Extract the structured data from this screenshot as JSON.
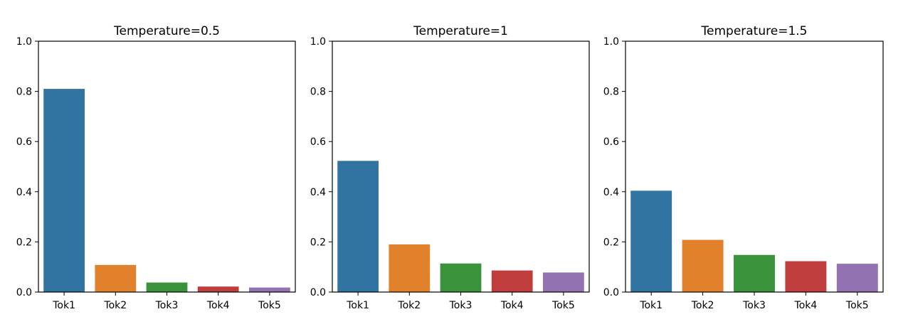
{
  "chart_data": [
    {
      "type": "bar",
      "title": "Temperature=0.5",
      "categories": [
        "Tok1",
        "Tok2",
        "Tok3",
        "Tok4",
        "Tok5"
      ],
      "values": [
        0.81,
        0.108,
        0.038,
        0.022,
        0.018
      ],
      "colors": [
        "#3274a1",
        "#e1812c",
        "#3a923a",
        "#c03d3e",
        "#9372b2"
      ],
      "ylim": [
        0,
        1.0
      ],
      "yticks": [
        "0.0",
        "0.2",
        "0.4",
        "0.6",
        "0.8",
        "1.0"
      ],
      "xlabel": "",
      "ylabel": "",
      "grid": false
    },
    {
      "type": "bar",
      "title": "Temperature=1",
      "categories": [
        "Tok1",
        "Tok2",
        "Tok3",
        "Tok4",
        "Tok5"
      ],
      "values": [
        0.523,
        0.19,
        0.114,
        0.086,
        0.078
      ],
      "colors": [
        "#3274a1",
        "#e1812c",
        "#3a923a",
        "#c03d3e",
        "#9372b2"
      ],
      "ylim": [
        0,
        1.0
      ],
      "yticks": [
        "0.0",
        "0.2",
        "0.4",
        "0.6",
        "0.8",
        "1.0"
      ],
      "xlabel": "",
      "ylabel": "",
      "grid": false
    },
    {
      "type": "bar",
      "title": "Temperature=1.5",
      "categories": [
        "Tok1",
        "Tok2",
        "Tok3",
        "Tok4",
        "Tok5"
      ],
      "values": [
        0.404,
        0.208,
        0.148,
        0.123,
        0.113
      ],
      "colors": [
        "#3274a1",
        "#e1812c",
        "#3a923a",
        "#c03d3e",
        "#9372b2"
      ],
      "ylim": [
        0,
        1.0
      ],
      "yticks": [
        "0.0",
        "0.2",
        "0.4",
        "0.6",
        "0.8",
        "1.0"
      ],
      "xlabel": "",
      "ylabel": "",
      "grid": false
    }
  ]
}
